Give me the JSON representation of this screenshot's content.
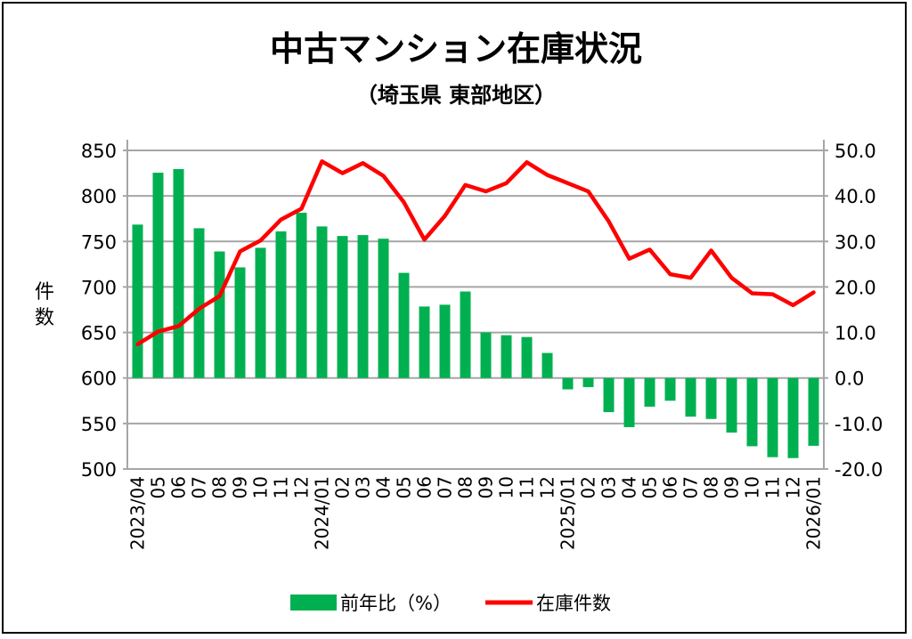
{
  "chart_data": {
    "type": "bar+line",
    "title": "中古マンション在庫状況",
    "subtitle": "（埼玉県 東部地区）",
    "ylabel": "件数",
    "ylim_left": [
      500,
      850
    ],
    "ylim_right": [
      -20,
      50
    ],
    "left_ticks": [
      "500",
      "550",
      "600",
      "650",
      "700",
      "750",
      "800",
      "850"
    ],
    "right_ticks": [
      "-20.0",
      "-10.0",
      "0.0",
      "10.0",
      "20.0",
      "30.0",
      "40.0",
      "50.0"
    ],
    "grid": true,
    "legend_position": "bottom",
    "categories": [
      "2023/04",
      "05",
      "06",
      "07",
      "08",
      "09",
      "10",
      "11",
      "12",
      "2024/01",
      "02",
      "03",
      "04",
      "05",
      "06",
      "07",
      "08",
      "09",
      "10",
      "11",
      "12",
      "2025/01",
      "02",
      "03",
      "04",
      "05",
      "06",
      "07",
      "08",
      "09",
      "10",
      "11",
      "12",
      "2026/01"
    ],
    "series": [
      {
        "name": "前年比（%）",
        "type": "bar",
        "axis": "right",
        "color": "#00b050",
        "values": [
          33.7,
          45.1,
          45.9,
          32.9,
          27.8,
          24.3,
          28.6,
          32.2,
          36.3,
          33.3,
          31.2,
          31.4,
          30.6,
          23.1,
          15.7,
          16.1,
          19.0,
          10.0,
          9.4,
          9.0,
          5.5,
          -2.5,
          -2.0,
          -7.5,
          -10.8,
          -6.3,
          -5.0,
          -8.5,
          -9.0,
          -12.0,
          -15.0,
          -17.4,
          -17.6,
          -14.9
        ]
      },
      {
        "name": "在庫件数",
        "type": "line",
        "axis": "left",
        "color": "#ff0000",
        "values": [
          637,
          651,
          657,
          676,
          690,
          739,
          751,
          774,
          786,
          838,
          825,
          836,
          822,
          793,
          752,
          778,
          812,
          805,
          814,
          837,
          823,
          814,
          805,
          772,
          731,
          741,
          714,
          710,
          740,
          710,
          693,
          692,
          680,
          694
        ]
      }
    ],
    "negative_tick_color": "#c00000"
  }
}
